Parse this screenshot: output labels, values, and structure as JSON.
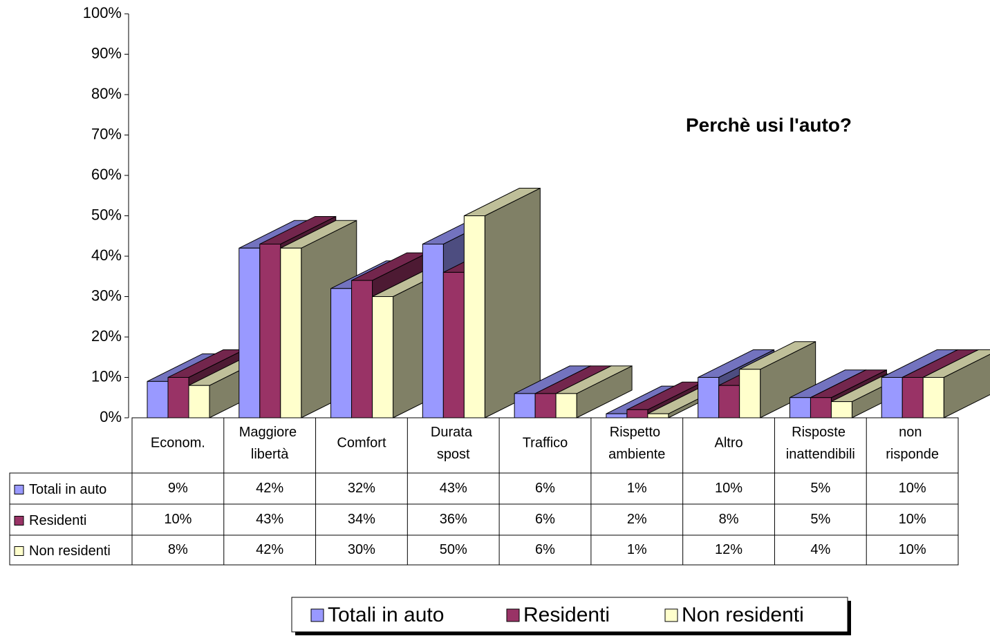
{
  "chart_data": {
    "type": "bar3d",
    "title": "Perchè usi l'auto?",
    "categories": [
      "Econom.",
      "Maggiore libertà",
      "Comfort",
      "Durata spost",
      "Traffico",
      "Rispetto ambiente",
      "Altro",
      "Risposte inattendibili",
      "non risponde"
    ],
    "series": [
      {
        "name": "Totali in auto",
        "color": "#9999ff",
        "values": [
          9,
          42,
          32,
          43,
          6,
          1,
          10,
          5,
          10
        ],
        "value_labels": [
          "9%",
          "42%",
          "32%",
          "43%",
          "6%",
          "1%",
          "10%",
          "5%",
          "10%"
        ]
      },
      {
        "name": "Residenti",
        "color": "#993366",
        "values": [
          10,
          43,
          34,
          36,
          6,
          2,
          8,
          5,
          10
        ],
        "value_labels": [
          "10%",
          "43%",
          "34%",
          "36%",
          "6%",
          "2%",
          "8%",
          "5%",
          "10%"
        ]
      },
      {
        "name": "Non residenti",
        "color": "#ffffcc",
        "values": [
          8,
          42,
          30,
          50,
          6,
          1,
          12,
          4,
          10
        ],
        "value_labels": [
          "8%",
          "42%",
          "30%",
          "50%",
          "6%",
          "1%",
          "12%",
          "4%",
          "10%"
        ]
      }
    ],
    "ylim": [
      0,
      100
    ],
    "yticks": [
      {
        "value": 0,
        "label": "0%"
      },
      {
        "value": 10,
        "label": "10%"
      },
      {
        "value": 20,
        "label": "20%"
      },
      {
        "value": 30,
        "label": "30%"
      },
      {
        "value": 40,
        "label": "40%"
      },
      {
        "value": 50,
        "label": "50%"
      },
      {
        "value": 60,
        "label": "60%"
      },
      {
        "value": 70,
        "label": "70%"
      },
      {
        "value": 80,
        "label": "80%"
      },
      {
        "value": 90,
        "label": "90%"
      },
      {
        "value": 100,
        "label": "100%"
      }
    ],
    "grid": false
  }
}
